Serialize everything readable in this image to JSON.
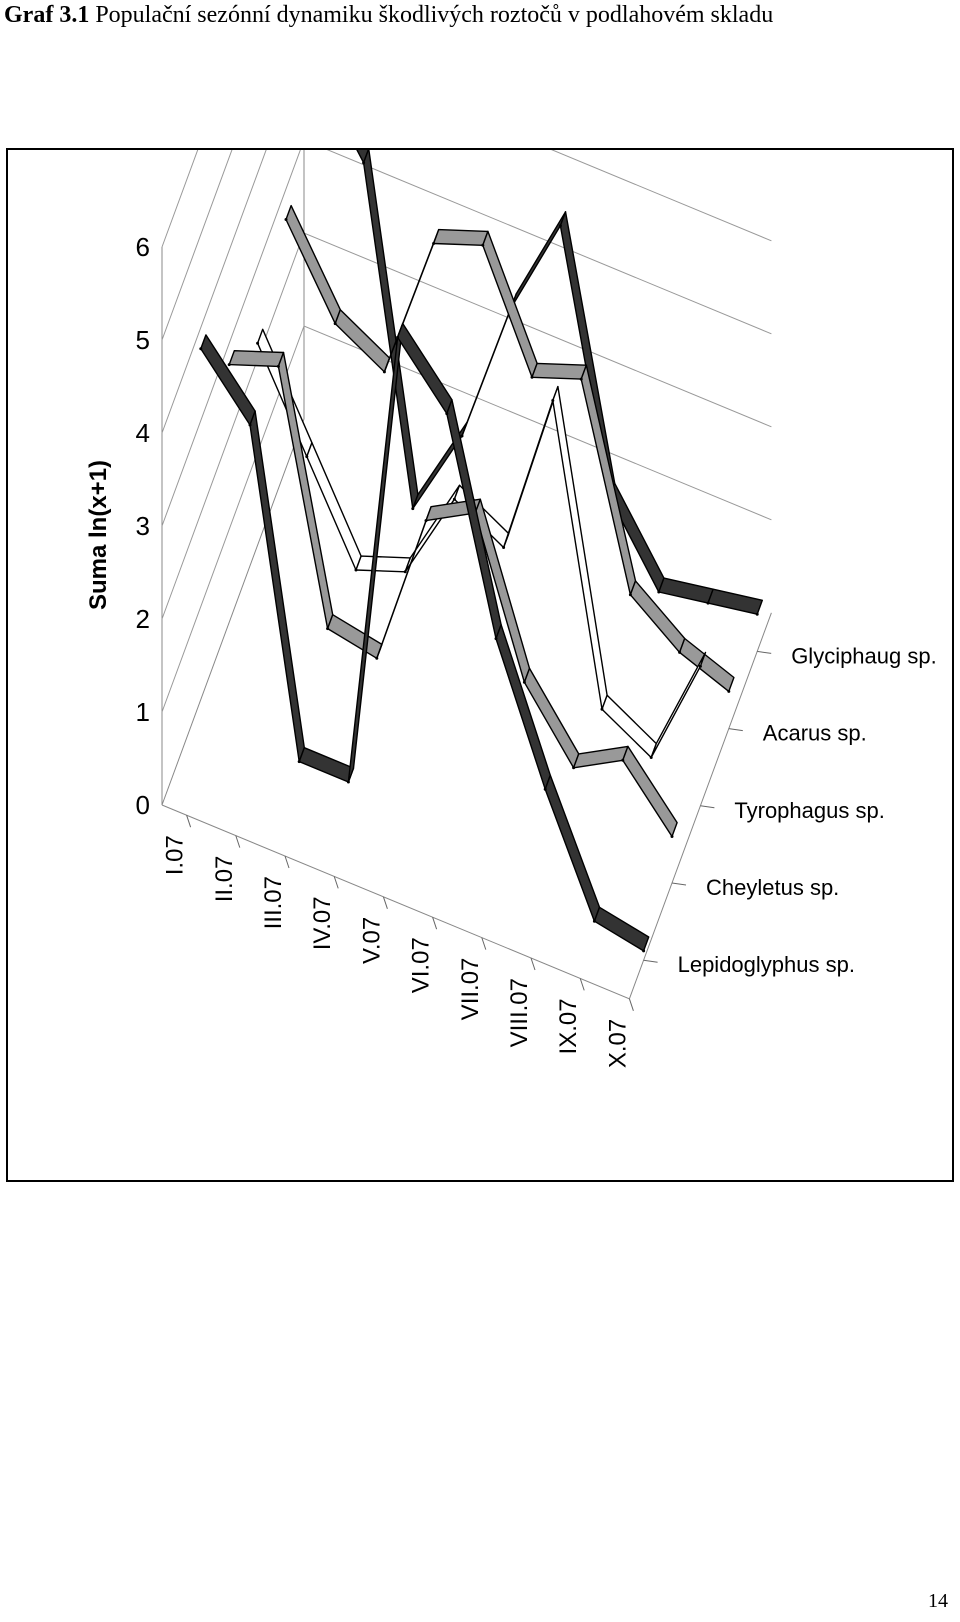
{
  "title": {
    "label": "Graf 3.1",
    "text": "Populační sezónní dynamiku škodlivých roztočů v podlahovém skladu"
  },
  "page_number": "14",
  "chart_data": {
    "type": "line-3d",
    "ylabel": "Suma ln(x+1)",
    "ylim": [
      0,
      6
    ],
    "yticks": [
      "0",
      "1",
      "2",
      "3",
      "4",
      "5",
      "6"
    ],
    "categories": [
      "I.07",
      "II.07",
      "III.07",
      "IV.07",
      "V.07",
      "VI.07",
      "VII.07",
      "VIII.07",
      "IX.07",
      "X.07"
    ],
    "series": [
      {
        "name": "Lepidoglyphus sp.",
        "color": "#333333",
        "values": [
          4.6,
          4.0,
          0.6,
          0.6,
          5.6,
          5.0,
          2.8,
          1.4,
          0.2,
          0.1
        ]
      },
      {
        "name": "Cheyletus sp.",
        "color": "#999999",
        "values": [
          3.6,
          3.8,
          1.2,
          1.1,
          2.8,
          3.1,
          1.5,
          0.8,
          1.1,
          0.5
        ]
      },
      {
        "name": "Tyrophagus sp.",
        "color": "#ffffff",
        "values": [
          3.0,
          2.0,
          1.0,
          1.2,
          2.2,
          1.9,
          3.7,
          0.6,
          0.3,
          1.5
        ]
      },
      {
        "name": "Acarus sp.",
        "color": "#999999",
        "values": [
          3.5,
          2.6,
          2.3,
          3.9,
          4.1,
          2.9,
          3.1,
          1.0,
          0.6,
          0.4
        ]
      },
      {
        "name": "Glyciphaug sp.",
        "color": "#333333",
        "values": [
          4.3,
          3.5,
          0.0,
          1.0,
          2.6,
          3.7,
          1.0,
          0.2,
          0.3,
          0.4
        ]
      }
    ],
    "grid": true,
    "legend": "depth-axis labels (right)"
  }
}
